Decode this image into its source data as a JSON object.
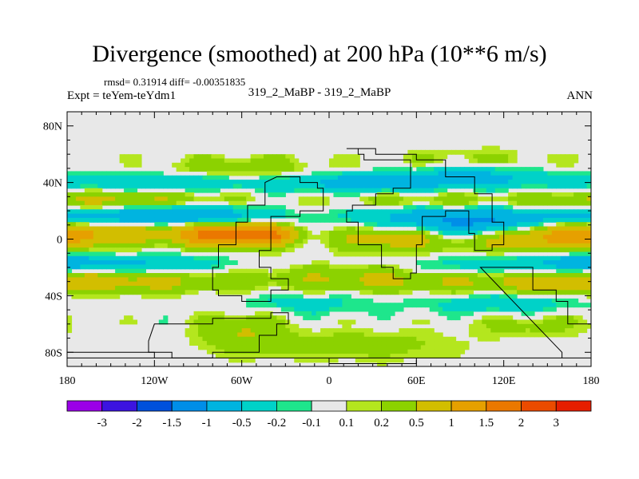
{
  "chart_data": {
    "type": "heatmap",
    "title": "Divergence (smoothed) at 200 hPa (10**6 m/s)",
    "stats_text": "rmsd= 0.31914 diff= -0.00351835",
    "expt_text": "Expt = teYem-teYdm1",
    "center_text": "319_2_MaBP - 319_2_MaBP",
    "season": "ANN",
    "xlim": [
      -180,
      180
    ],
    "ylim": [
      -90,
      90
    ],
    "x_ticks": [
      {
        "value": -180,
        "label": "180"
      },
      {
        "value": -120,
        "label": "120W"
      },
      {
        "value": -60,
        "label": "60W"
      },
      {
        "value": 0,
        "label": "0"
      },
      {
        "value": 60,
        "label": "60E"
      },
      {
        "value": 120,
        "label": "120E"
      },
      {
        "value": 180,
        "label": "180"
      }
    ],
    "y_ticks": [
      {
        "value": 80,
        "label": "80N"
      },
      {
        "value": 40,
        "label": "40N"
      },
      {
        "value": 0,
        "label": "0"
      },
      {
        "value": -40,
        "label": "40S"
      },
      {
        "value": -80,
        "label": "80S"
      }
    ],
    "colorbar": {
      "colors": [
        "#9b00e8",
        "#3c14e0",
        "#0050dc",
        "#008ee8",
        "#00b4e0",
        "#00d2c8",
        "#1ee68c",
        "#e8e8e8",
        "#b4e61e",
        "#8cd200",
        "#d2be00",
        "#e6a000",
        "#eb7800",
        "#eb4b00",
        "#e61e00"
      ],
      "labels": [
        "-3",
        "-2",
        "-1.5",
        "-1",
        "-0.5",
        "-0.2",
        "-0.1",
        "0.1",
        "0.2",
        "0.5",
        "1",
        "1.5",
        "2",
        "3"
      ]
    },
    "contour_levels": [
      -3,
      -2,
      -1.5,
      -1,
      -0.5,
      -0.2,
      -0.1,
      0.1,
      0.2,
      0.5,
      1,
      1.5,
      2,
      3
    ],
    "field_pattern": "zonal bands of alternating divergence; strongest positive (~1-2) near equator over western Pacific and South America, negative bands near 20N/20S and 45N, weak values at high latitudes",
    "coastline_outline": "paleogeographic land outlines (ANN mean, 319_2_MaBP)"
  }
}
